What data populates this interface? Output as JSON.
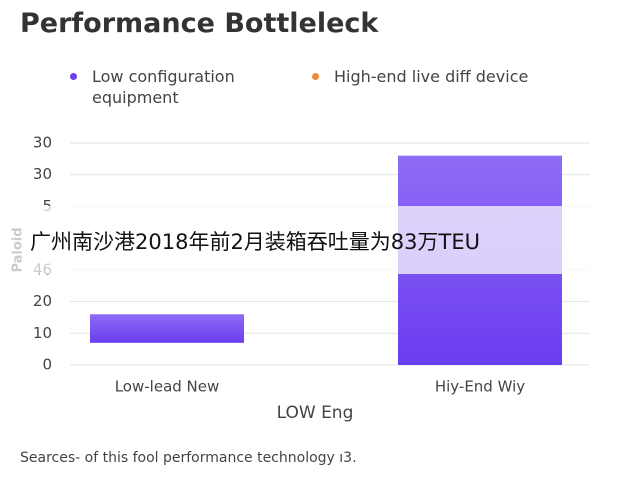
{
  "chart_data": {
    "type": "bar",
    "title": "Performance Bottleleck",
    "legend": [
      {
        "name": "Low configuration equipment",
        "color": "#6b3ff0"
      },
      {
        "name": "High-end live diff device",
        "color": "#f0893c"
      }
    ],
    "categories": [
      "Low-lead New",
      "Hiy-End Wiy"
    ],
    "starts": [
      7,
      0
    ],
    "values": [
      16,
      66
    ],
    "x_label": "LOW Eng",
    "y_label": "Paloid",
    "ylim": [
      0,
      70
    ],
    "yticks": [
      0,
      10,
      20,
      {
        "value": 30,
        "label": "46"
      },
      {
        "value": 50,
        "label": "5"
      },
      {
        "value": 60,
        "label": "30"
      },
      {
        "value": 70,
        "label": "30"
      }
    ],
    "grid": true,
    "overlay": "广州南沙港2018年前2月装箱吞吐量为83万TEU",
    "note": "Searces- of this fool performance technology ı3."
  }
}
